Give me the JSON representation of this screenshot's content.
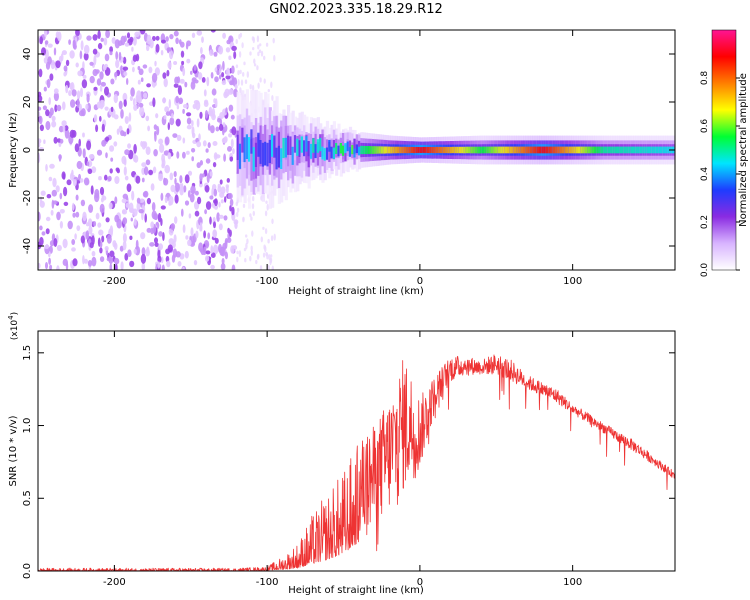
{
  "title": "GN02.2023.335.18.29.R12",
  "chart_data": [
    {
      "type": "heatmap",
      "title": "GN02.2023.335.18.29.R12",
      "xlabel": "Height of straight line (km)",
      "ylabel": "Frequency (Hz)",
      "xlim": [
        -250,
        167
      ],
      "ylim": [
        -50,
        50
      ],
      "x_ticks": [
        -200,
        -100,
        0,
        100
      ],
      "y_ticks": [
        -40,
        -20,
        0,
        20,
        40
      ],
      "colorbar": {
        "label": "Normalized spectral amplitude",
        "range": [
          0,
          1
        ],
        "ticks": [
          "0.0",
          "0.2",
          "0.4",
          "0.6",
          "0.8"
        ],
        "colors": [
          "#ffffff",
          "#d8b4ff",
          "#8a2be2",
          "#1e3cff",
          "#00e5ff",
          "#00ff33",
          "#ffff00",
          "#ff7f00",
          "#ff0000",
          "#ff1493"
        ]
      },
      "ridge": [
        {
          "x": -120,
          "half_width_hz": 15,
          "amplitude": 0.35
        },
        {
          "x": -100,
          "half_width_hz": 14,
          "amplitude": 0.4
        },
        {
          "x": -80,
          "half_width_hz": 10,
          "amplitude": 0.4
        },
        {
          "x": -60,
          "half_width_hz": 7,
          "amplitude": 0.45
        },
        {
          "x": -40,
          "half_width_hz": 5,
          "amplitude": 0.5
        },
        {
          "x": -20,
          "half_width_hz": 4,
          "amplitude": 0.7
        },
        {
          "x": 0,
          "half_width_hz": 3.5,
          "amplitude": 0.9
        },
        {
          "x": 40,
          "half_width_hz": 4,
          "amplitude": 0.55
        },
        {
          "x": 80,
          "half_width_hz": 4,
          "amplitude": 0.9
        },
        {
          "x": 120,
          "half_width_hz": 4,
          "amplitude": 0.5
        },
        {
          "x": 167,
          "half_width_hz": 4,
          "amplitude": 0.45
        }
      ],
      "noise_region_x": [
        -250,
        -120
      ],
      "sparse_region_x": [
        -120,
        -95
      ]
    },
    {
      "type": "line",
      "xlabel": "Height of straight line (km)",
      "ylabel": "SNR (10 * v/v)",
      "y_multiplier_label": "(x10",
      "y_multiplier_exponent": "4",
      "y_multiplier_close": ")",
      "xlim": [
        -250,
        167
      ],
      "ylim": [
        0,
        1.65
      ],
      "x_ticks": [
        -200,
        -100,
        0,
        100
      ],
      "y_ticks": [
        "0.0",
        "0.5",
        "1.0",
        "1.5"
      ],
      "color": "#ee3333",
      "envelope": {
        "x": [
          -250,
          -120,
          -100,
          -90,
          -80,
          -70,
          -60,
          -50,
          -40,
          -30,
          -20,
          -10,
          0,
          10,
          20,
          30,
          40,
          50,
          60,
          70,
          80,
          90,
          100,
          120,
          140,
          167
        ],
        "y_low": [
          0.0,
          0.0,
          0.005,
          0.01,
          0.02,
          0.05,
          0.08,
          0.12,
          0.2,
          0.3,
          0.4,
          0.55,
          0.7,
          1.1,
          1.3,
          1.35,
          1.35,
          1.35,
          1.3,
          1.25,
          1.2,
          1.15,
          1.08,
          0.95,
          0.82,
          0.63
        ],
        "y_high": [
          0.02,
          0.02,
          0.03,
          0.1,
          0.2,
          0.4,
          0.55,
          0.7,
          0.9,
          1.0,
          1.2,
          1.5,
          1.2,
          1.35,
          1.48,
          1.48,
          1.45,
          1.5,
          1.45,
          1.35,
          1.3,
          1.25,
          1.15,
          1.02,
          0.9,
          0.68
        ]
      }
    }
  ]
}
